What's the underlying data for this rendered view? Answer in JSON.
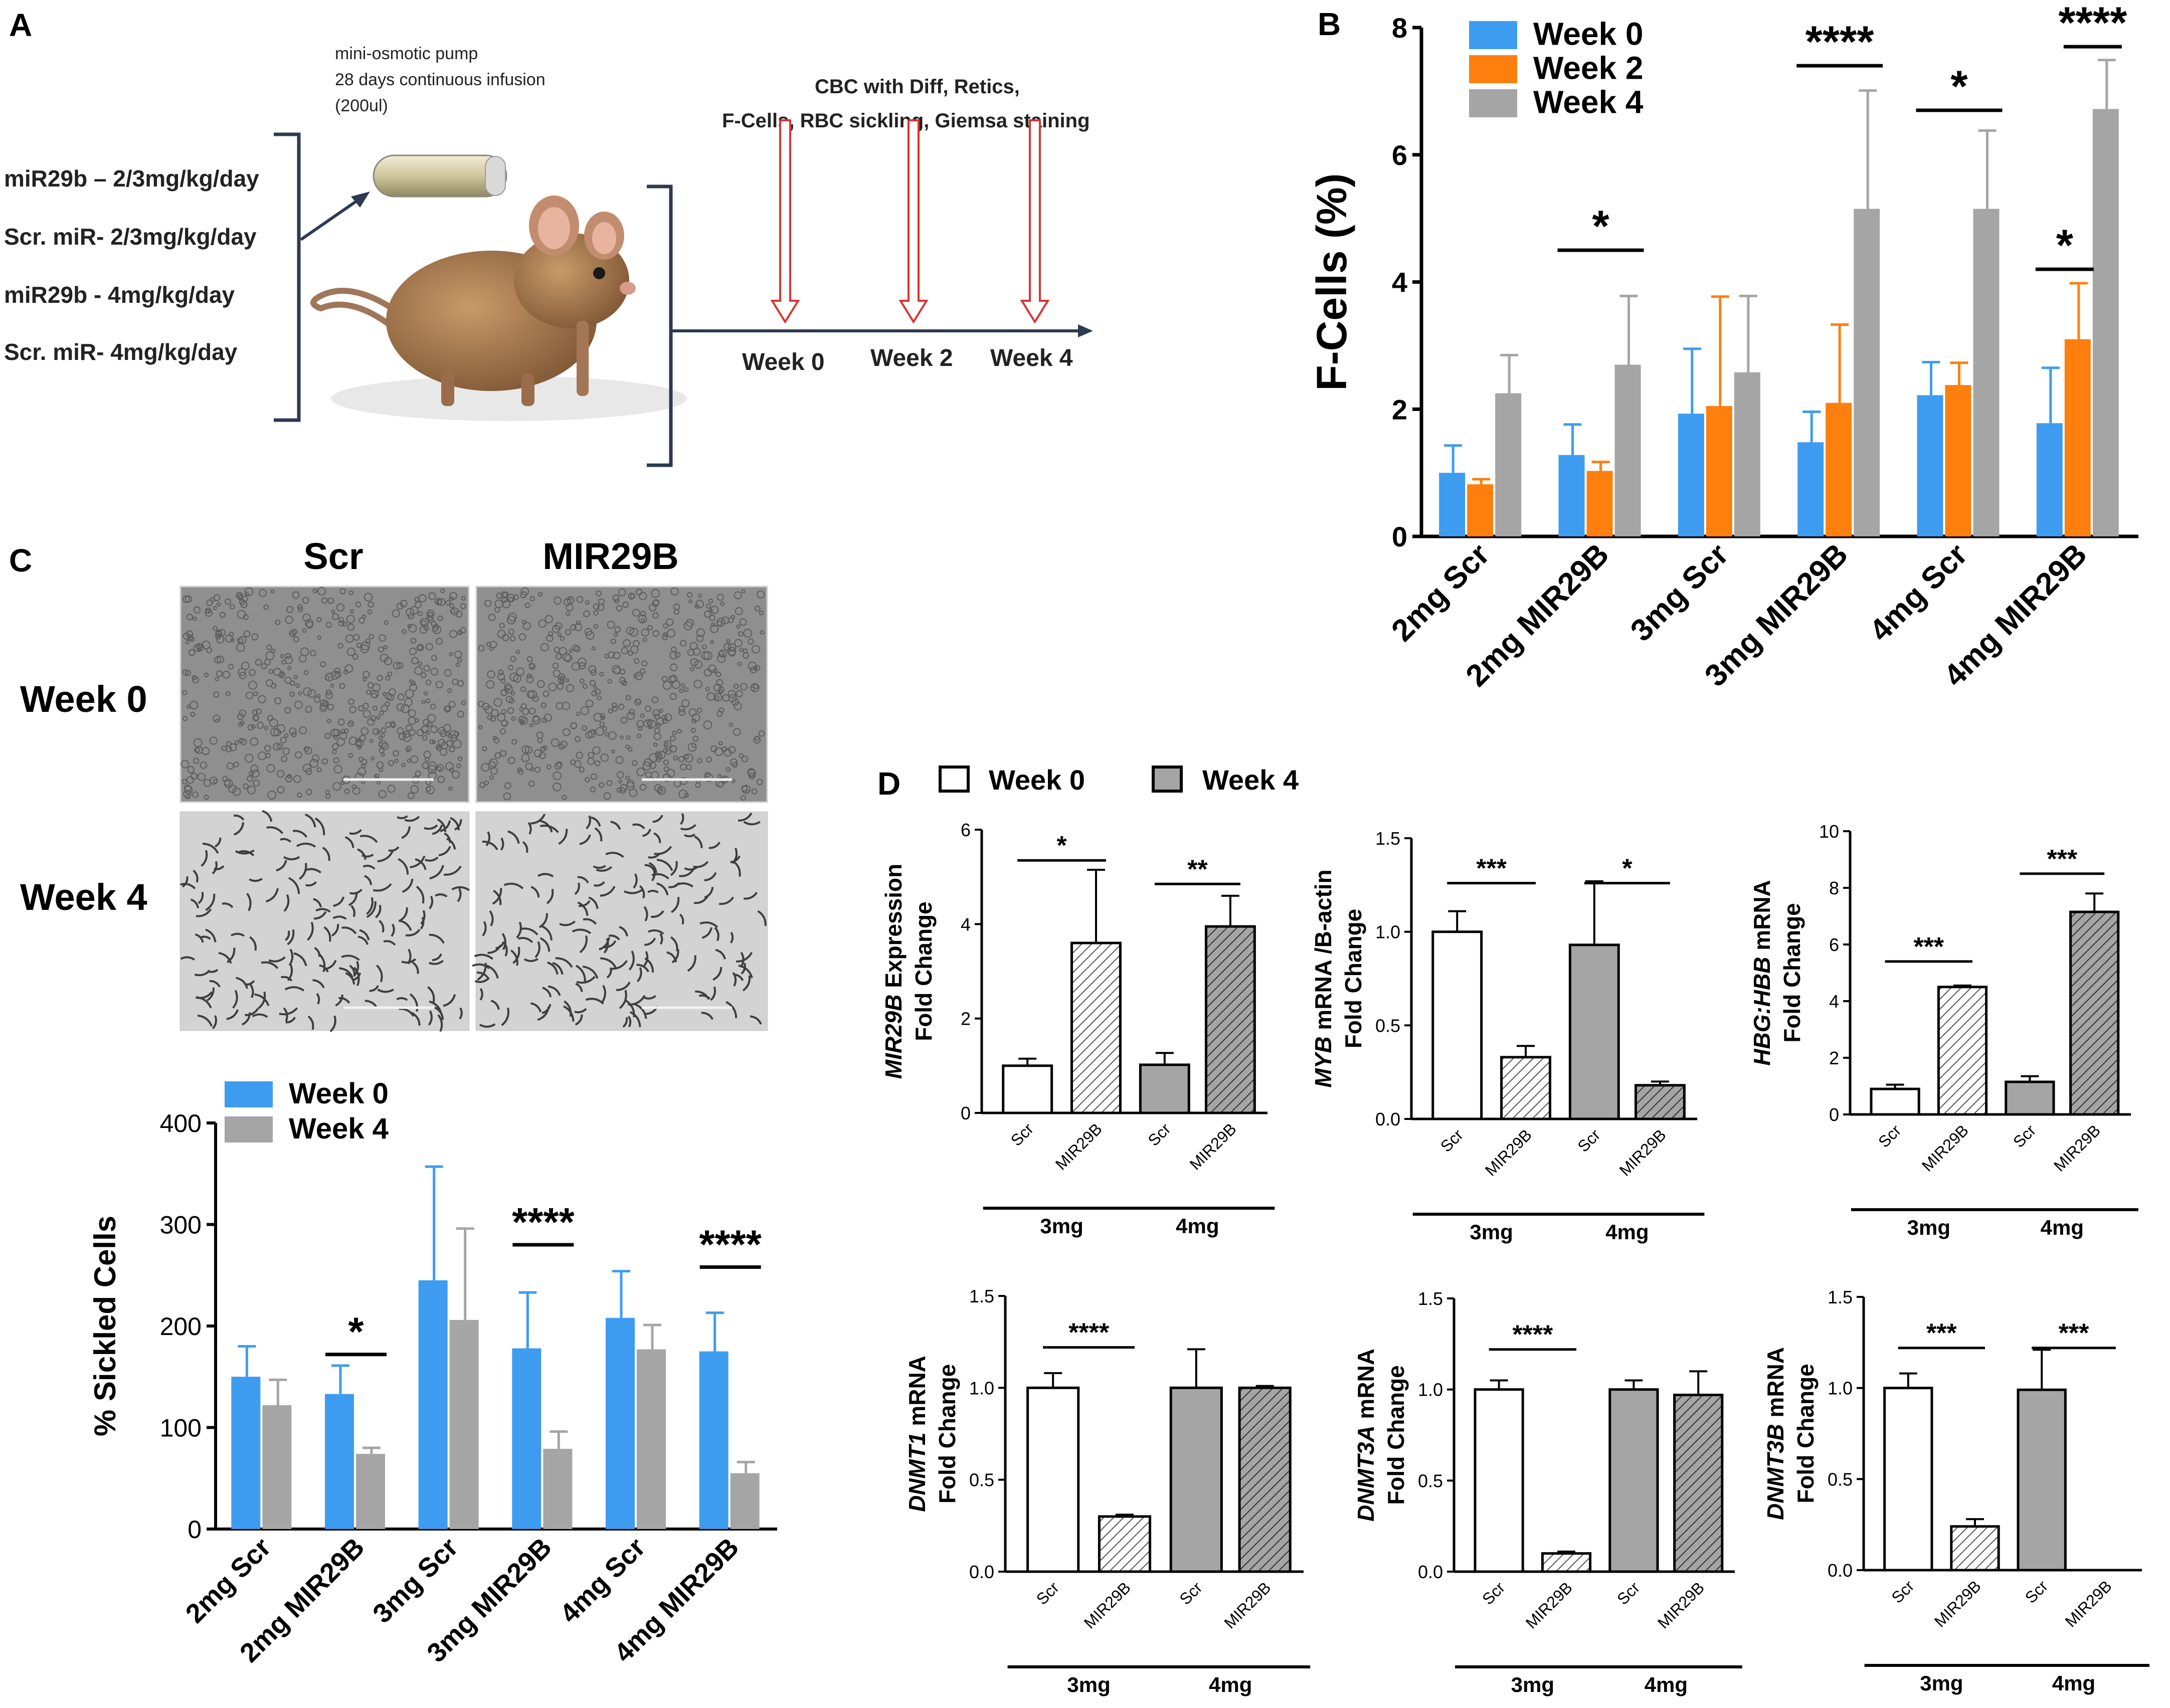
{
  "panel_labels": {
    "a": "A",
    "b": "B",
    "c": "C",
    "d": "D"
  },
  "schematic": {
    "pump_text": [
      "mini-osmotic pump",
      "28 days continuous  infusion",
      "(200ul)"
    ],
    "groups": [
      "miR29b – 2/3mg/kg/day",
      "Scr. miR- 2/3mg/kg/day",
      "miR29b - 4mg/kg/day",
      "Scr. miR- 4mg/kg/day"
    ],
    "assays": [
      "CBC with Diff, Retics,",
      "F-Cells,  RBC sickling, Giemsa staining"
    ],
    "timepoints": [
      "Week 0",
      "Week 2",
      "Week 4"
    ]
  },
  "micrographs": {
    "col_labels": [
      "Scr",
      "MIR29B"
    ],
    "row_labels": [
      "Week 0",
      "Week 4"
    ]
  },
  "colors": {
    "week0": "#3d9cf0",
    "week2": "#fe7f0e",
    "week4": "#a5a5a5",
    "white_bar": "#ffffff",
    "gray_bar": "#a5a5a5",
    "axis": "#000000"
  },
  "chart_data": [
    {
      "id": "fcells",
      "type": "bar",
      "ylabel": "F-Cells (%)",
      "ylim": [
        0,
        8
      ],
      "yticks": [
        "0",
        "2",
        "4",
        "6",
        "8"
      ],
      "categories": [
        "2mg Scr",
        "2mg MIR29B",
        "3mg Scr",
        "3mg MIR29B",
        "4mg Scr",
        "4mg MIR29B"
      ],
      "series": [
        {
          "name": "Week 0",
          "color": "#3d9cf0",
          "values": [
            1.0,
            1.28,
            1.93,
            1.48,
            2.22,
            1.78
          ],
          "errors": [
            0.43,
            0.48,
            1.02,
            0.48,
            0.52,
            0.87
          ]
        },
        {
          "name": "Week 2",
          "color": "#fe7f0e",
          "values": [
            0.82,
            1.03,
            2.05,
            2.1,
            2.38,
            3.1
          ],
          "errors": [
            0.08,
            0.14,
            1.72,
            1.23,
            0.35,
            0.88
          ]
        },
        {
          "name": "Week 4",
          "color": "#a5a5a5",
          "values": [
            2.25,
            2.7,
            2.58,
            5.15,
            5.15,
            6.72
          ],
          "errors": [
            0.6,
            1.08,
            1.2,
            1.86,
            1.23,
            0.77
          ]
        }
      ],
      "legend": "top-left",
      "significance": [
        {
          "group": 1,
          "from": 0,
          "to": 2,
          "y": 4.5,
          "label": "*"
        },
        {
          "group": 3,
          "from": 0,
          "to": 2,
          "y": 7.4,
          "label": "****"
        },
        {
          "group": 4,
          "from": 0,
          "to": 2,
          "y": 6.7,
          "label": "*"
        },
        {
          "group": 5,
          "from": 0,
          "to": 1,
          "y": 4.2,
          "label": "*"
        },
        {
          "group": 5,
          "from": 1,
          "to": 2,
          "y": 7.7,
          "label": "****"
        }
      ]
    },
    {
      "id": "sickled",
      "type": "bar",
      "ylabel": "% Sickled Cells",
      "ylim": [
        0,
        400
      ],
      "yticks": [
        "0",
        "100",
        "200",
        "300",
        "400"
      ],
      "categories": [
        "2mg Scr",
        "2mg MIR29B",
        "3mg Scr",
        "3mg MIR29B",
        "4mg Scr",
        "4mg MIR29B"
      ],
      "series": [
        {
          "name": "Week 0",
          "color": "#3d9cf0",
          "values": [
            150,
            133,
            245,
            178,
            208,
            175
          ],
          "errors": [
            30,
            28,
            112,
            55,
            46,
            38
          ]
        },
        {
          "name": "Week 4",
          "color": "#a5a5a5",
          "values": [
            122,
            74,
            206,
            79,
            177,
            55
          ],
          "errors": [
            25,
            6,
            90,
            17,
            24,
            11
          ]
        }
      ],
      "legend": "top-left",
      "significance": [
        {
          "group": 1,
          "from": 0,
          "to": 1,
          "y": 172,
          "label": "*"
        },
        {
          "group": 3,
          "from": 0,
          "to": 1,
          "y": 280,
          "label": "****"
        },
        {
          "group": 5,
          "from": 0,
          "to": 1,
          "y": 258,
          "label": "****"
        }
      ]
    },
    {
      "id": "mir29b",
      "type": "bar",
      "ylabel_italic": "MIR29B",
      "ylabel_rest": " Expression",
      "ylabel2": "Fold Change",
      "ylim": [
        0,
        6
      ],
      "yticks": [
        "0",
        "2",
        "4",
        "6"
      ],
      "bars": [
        {
          "label": "Scr",
          "value": 1.0,
          "error": 0.15,
          "fill": "white",
          "hatch": false
        },
        {
          "label": "MIR29B",
          "value": 3.6,
          "error": 1.55,
          "fill": "white",
          "hatch": true
        },
        {
          "label": "Scr",
          "value": 1.02,
          "error": 0.25,
          "fill": "gray",
          "hatch": false
        },
        {
          "label": "MIR29B",
          "value": 3.95,
          "error": 0.65,
          "fill": "gray",
          "hatch": true
        }
      ],
      "groups": [
        "3mg",
        "4mg"
      ],
      "significance": [
        {
          "from": 0,
          "to": 1,
          "y": 5.35,
          "label": "*"
        },
        {
          "from": 2,
          "to": 3,
          "y": 4.85,
          "label": "**"
        }
      ]
    },
    {
      "id": "myb",
      "type": "bar",
      "ylabel_italic": "MYB",
      "ylabel_rest": " mRNA /B-actin",
      "ylabel2": "Fold Change",
      "ylim": [
        0,
        1.5
      ],
      "yticks": [
        "0.0",
        "0.5",
        "1.0",
        "1.5"
      ],
      "bars": [
        {
          "label": "Scr",
          "value": 1.0,
          "error": 0.11,
          "fill": "white",
          "hatch": false
        },
        {
          "label": "MIR29B",
          "value": 0.33,
          "error": 0.06,
          "fill": "white",
          "hatch": true
        },
        {
          "label": "Scr",
          "value": 0.93,
          "error": 0.34,
          "fill": "gray",
          "hatch": false
        },
        {
          "label": "MIR29B",
          "value": 0.18,
          "error": 0.02,
          "fill": "gray",
          "hatch": true
        }
      ],
      "groups": [
        "3mg",
        "4mg"
      ],
      "significance": [
        {
          "from": 0,
          "to": 1,
          "y": 1.26,
          "label": "***"
        },
        {
          "from": 2,
          "to": 3,
          "y": 1.26,
          "label": "*"
        }
      ]
    },
    {
      "id": "hbg",
      "type": "bar",
      "ylabel_italic": "HBG:HBB",
      "ylabel_rest": " mRNA",
      "ylabel2": "Fold Change",
      "ylim": [
        0,
        10
      ],
      "yticks": [
        "0",
        "2",
        "4",
        "6",
        "8",
        "10"
      ],
      "bars": [
        {
          "label": "Scr",
          "value": 0.9,
          "error": 0.15,
          "fill": "white",
          "hatch": false
        },
        {
          "label": "MIR29B",
          "value": 4.5,
          "error": 0.05,
          "fill": "white",
          "hatch": true
        },
        {
          "label": "Scr",
          "value": 1.15,
          "error": 0.2,
          "fill": "gray",
          "hatch": false
        },
        {
          "label": "MIR29B",
          "value": 7.15,
          "error": 0.65,
          "fill": "gray",
          "hatch": true
        }
      ],
      "groups": [
        "3mg",
        "4mg"
      ],
      "significance": [
        {
          "from": 0,
          "to": 1,
          "y": 5.4,
          "label": "***"
        },
        {
          "from": 2,
          "to": 3,
          "y": 8.5,
          "label": "***"
        }
      ]
    },
    {
      "id": "dnmt1",
      "type": "bar",
      "ylabel_italic": "DNMT1",
      "ylabel_rest": " mRNA",
      "ylabel2": "Fold Change",
      "ylim": [
        0,
        1.5
      ],
      "yticks": [
        "0.0",
        "0.5",
        "1.0",
        "1.5"
      ],
      "bars": [
        {
          "label": "Scr",
          "value": 1.0,
          "error": 0.08,
          "fill": "white",
          "hatch": false
        },
        {
          "label": "MIR29B",
          "value": 0.3,
          "error": 0.01,
          "fill": "white",
          "hatch": true
        },
        {
          "label": "Scr",
          "value": 1.0,
          "error": 0.21,
          "fill": "gray",
          "hatch": false
        },
        {
          "label": "MIR29B",
          "value": 1.0,
          "error": 0.01,
          "fill": "gray",
          "hatch": true
        }
      ],
      "groups": [
        "3mg",
        "4mg"
      ],
      "significance": [
        {
          "from": 0,
          "to": 1,
          "y": 1.22,
          "label": "****"
        }
      ]
    },
    {
      "id": "dnmt3a",
      "type": "bar",
      "ylabel_italic": "DNMT3A",
      "ylabel_rest": " mRNA",
      "ylabel2": "Fold Change",
      "ylim": [
        0,
        1.5
      ],
      "yticks": [
        "0.0",
        "0.5",
        "1.0",
        "1.5"
      ],
      "bars": [
        {
          "label": "Scr",
          "value": 1.0,
          "error": 0.05,
          "fill": "white",
          "hatch": false
        },
        {
          "label": "MIR29B",
          "value": 0.1,
          "error": 0.01,
          "fill": "white",
          "hatch": true
        },
        {
          "label": "Scr",
          "value": 1.0,
          "error": 0.05,
          "fill": "gray",
          "hatch": false
        },
        {
          "label": "MIR29B",
          "value": 0.97,
          "error": 0.13,
          "fill": "gray",
          "hatch": true
        }
      ],
      "groups": [
        "3mg",
        "4mg"
      ],
      "significance": [
        {
          "from": 0,
          "to": 1,
          "y": 1.22,
          "label": "****"
        }
      ]
    },
    {
      "id": "dnmt3b",
      "type": "bar",
      "ylabel_italic": "DNMT3B",
      "ylabel_rest": " mRNA",
      "ylabel2": "Fold Change",
      "ylim": [
        0,
        1.5
      ],
      "yticks": [
        "0.0",
        "0.5",
        "1.0",
        "1.5"
      ],
      "bars": [
        {
          "label": "Scr",
          "value": 1.0,
          "error": 0.08,
          "fill": "white",
          "hatch": false
        },
        {
          "label": "MIR29B",
          "value": 0.24,
          "error": 0.04,
          "fill": "white",
          "hatch": true
        },
        {
          "label": "Scr",
          "value": 0.99,
          "error": 0.22,
          "fill": "gray",
          "hatch": false
        },
        {
          "label": "MIR29B",
          "value": 0.0,
          "error": 0.0,
          "fill": "gray",
          "hatch": true
        }
      ],
      "groups": [
        "3mg",
        "4mg"
      ],
      "significance": [
        {
          "from": 0,
          "to": 1,
          "y": 1.22,
          "label": "***"
        },
        {
          "from": 2,
          "to": 3,
          "y": 1.22,
          "label": "***"
        }
      ]
    }
  ],
  "d_legend": [
    "Week 0",
    "Week 4"
  ]
}
